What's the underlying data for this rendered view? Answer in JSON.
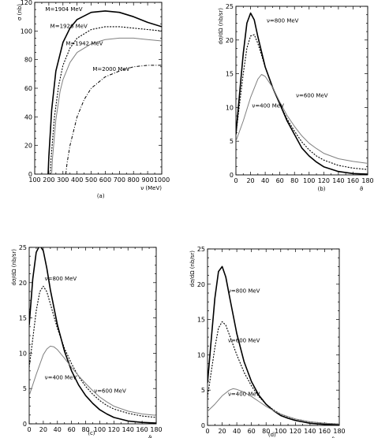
{
  "chart_data": [
    {
      "type": "line",
      "panel_label": "(a)",
      "xlabel": "ν (MeV)",
      "ylabel": "σ (nb)",
      "xlim": [
        100,
        1000
      ],
      "ylim": [
        0,
        120
      ],
      "xticks": [
        100,
        200,
        300,
        400,
        500,
        600,
        700,
        800,
        900,
        1000
      ],
      "yticks": [
        0,
        20,
        40,
        60,
        80,
        100,
        120
      ],
      "series": [
        {
          "name": "M=1904 MeV",
          "style": "solid-thick",
          "color": "#000000",
          "x": [
            195,
            200,
            220,
            250,
            300,
            350,
            400,
            500,
            600,
            700,
            800,
            900,
            1000
          ],
          "y": [
            0,
            12,
            45,
            72,
            92,
            102,
            108,
            113,
            114,
            113,
            110,
            106,
            103
          ]
        },
        {
          "name": "M=1926 MeV",
          "style": "dotted",
          "color": "#000000",
          "x": [
            210,
            215,
            240,
            270,
            300,
            350,
            400,
            500,
            600,
            700,
            800,
            900,
            1000
          ],
          "y": [
            0,
            10,
            40,
            62,
            76,
            88,
            95,
            101,
            103,
            103,
            102,
            101,
            100
          ]
        },
        {
          "name": "M=1942 MeV",
          "style": "solid-thin",
          "color": "#808080",
          "x": [
            220,
            225,
            250,
            280,
            300,
            350,
            400,
            500,
            600,
            700,
            800,
            900,
            1000
          ],
          "y": [
            0,
            10,
            38,
            58,
            66,
            78,
            85,
            91,
            94,
            95,
            95,
            94,
            93
          ]
        },
        {
          "name": "M=2000 MeV",
          "style": "dash-dot",
          "color": "#000000",
          "x": [
            320,
            330,
            350,
            400,
            450,
            500,
            600,
            700,
            800,
            900,
            1000
          ],
          "y": [
            0,
            8,
            20,
            40,
            52,
            60,
            68,
            72,
            75,
            76,
            76
          ]
        }
      ],
      "annotations": [
        "M=1904 MeV",
        "M=1926 MeV",
        "M=1942 MeV",
        "M=2000 MeV"
      ]
    },
    {
      "type": "line",
      "panel_label": "(b)",
      "xlabel": "ϑ",
      "ylabel": "dσ/dΩ (nb/sr)",
      "xlim": [
        0,
        180
      ],
      "ylim": [
        0,
        25
      ],
      "xticks": [
        0,
        20,
        40,
        60,
        80,
        100,
        120,
        140,
        160,
        180
      ],
      "yticks": [
        0,
        5,
        10,
        15,
        20,
        25
      ],
      "series": [
        {
          "name": "ν=800 MeV",
          "style": "solid-thick",
          "color": "#000000",
          "x": [
            0,
            5,
            10,
            15,
            20,
            25,
            30,
            40,
            50,
            60,
            70,
            80,
            90,
            100,
            110,
            120,
            140,
            160,
            180
          ],
          "y": [
            6,
            12,
            18,
            22.5,
            24,
            23,
            20.5,
            16,
            13,
            10.5,
            8,
            6,
            4,
            2.8,
            1.9,
            1.2,
            0.5,
            0.2,
            0.1
          ]
        },
        {
          "name": "ν=600 MeV",
          "style": "dotted",
          "color": "#000000",
          "x": [
            0,
            5,
            10,
            15,
            20,
            25,
            30,
            40,
            50,
            60,
            70,
            80,
            90,
            100,
            110,
            120,
            140,
            160,
            180
          ],
          "y": [
            6,
            10.5,
            15,
            18.8,
            20.6,
            20.8,
            19.5,
            16,
            13,
            10.5,
            8.3,
            6.5,
            4.9,
            3.7,
            2.8,
            2.2,
            1.4,
            1.0,
            0.8
          ]
        },
        {
          "name": "ν=400 MeV",
          "style": "solid-thin",
          "color": "#808080",
          "x": [
            0,
            10,
            20,
            30,
            35,
            40,
            50,
            60,
            70,
            80,
            90,
            100,
            110,
            120,
            140,
            160,
            180
          ],
          "y": [
            5,
            8,
            11.5,
            14.2,
            14.9,
            14.6,
            13,
            10.8,
            8.8,
            7.2,
            5.8,
            4.7,
            3.9,
            3.2,
            2.4,
            2.0,
            1.7
          ]
        }
      ],
      "annotations": [
        "ν=800 MeV",
        "ν=600 MeV",
        "ν=400 MeV"
      ]
    },
    {
      "type": "line",
      "panel_label": "(c)",
      "xlabel": "ϑ",
      "ylabel": "dσ/dΩ (nb/sr)",
      "xlim": [
        0,
        180
      ],
      "ylim": [
        0,
        25
      ],
      "xticks": [
        0,
        20,
        40,
        60,
        80,
        100,
        120,
        140,
        160,
        180
      ],
      "yticks": [
        0,
        5,
        10,
        15,
        20,
        25
      ],
      "series": [
        {
          "name": "ν=800 MeV",
          "style": "solid-thick",
          "color": "#000000",
          "x": [
            0,
            5,
            10,
            15,
            20,
            25,
            30,
            40,
            50,
            60,
            70,
            80,
            90,
            100,
            110,
            120,
            140,
            160,
            180
          ],
          "y": [
            14,
            20.5,
            24.3,
            25.3,
            24.5,
            22,
            19,
            14,
            10.3,
            7.5,
            5.5,
            4,
            2.9,
            2.0,
            1.4,
            0.9,
            0.4,
            0.2,
            0.1
          ]
        },
        {
          "name": "ν=600 MeV",
          "style": "dotted",
          "color": "#000000",
          "x": [
            0,
            5,
            10,
            15,
            20,
            25,
            30,
            40,
            50,
            60,
            70,
            80,
            90,
            100,
            110,
            120,
            140,
            160,
            180
          ],
          "y": [
            8,
            12,
            16,
            18.7,
            19.5,
            18.7,
            17,
            13.5,
            10.7,
            8.5,
            6.7,
            5.3,
            4.2,
            3.3,
            2.6,
            2.1,
            1.5,
            1.1,
            0.9
          ]
        },
        {
          "name": "ν=400 MeV",
          "style": "solid-thin",
          "color": "#808080",
          "x": [
            0,
            10,
            20,
            25,
            30,
            35,
            40,
            50,
            60,
            70,
            80,
            90,
            100,
            110,
            120,
            140,
            160,
            180
          ],
          "y": [
            4,
            7,
            9.8,
            10.6,
            11,
            10.9,
            10.5,
            9.3,
            8,
            6.8,
            5.7,
            4.7,
            3.8,
            3.1,
            2.5,
            1.8,
            1.4,
            1.2
          ]
        }
      ],
      "annotations": [
        "ν=800 MeV",
        "ν=600 MeV",
        "ν=400 MeV"
      ]
    },
    {
      "type": "line",
      "panel_label": "(d)",
      "xlabel": "ϑ",
      "ylabel": "dσ/dΩ (nb/sr)",
      "xlim": [
        0,
        180
      ],
      "ylim": [
        0,
        25
      ],
      "xticks": [
        0,
        20,
        40,
        60,
        80,
        100,
        120,
        140,
        160,
        180
      ],
      "yticks": [
        0,
        5,
        10,
        15,
        20,
        25
      ],
      "series": [
        {
          "name": "ν=800 MeV",
          "style": "solid-thick",
          "color": "#000000",
          "x": [
            0,
            5,
            10,
            15,
            20,
            25,
            30,
            40,
            50,
            60,
            70,
            80,
            90,
            100,
            110,
            120,
            140,
            160,
            180
          ],
          "y": [
            6,
            12,
            18,
            21.8,
            22.5,
            21,
            18.3,
            13,
            9,
            6.2,
            4.3,
            3,
            2.1,
            1.4,
            1.0,
            0.7,
            0.3,
            0.15,
            0.1
          ]
        },
        {
          "name": "ν=600 MeV",
          "style": "dotted",
          "color": "#000000",
          "x": [
            0,
            5,
            10,
            15,
            20,
            25,
            30,
            40,
            50,
            60,
            70,
            80,
            90,
            100,
            110,
            120,
            140,
            160,
            180
          ],
          "y": [
            4,
            7.5,
            11,
            13.8,
            14.7,
            14.2,
            12.8,
            10,
            7.5,
            5.6,
            4.1,
            3.0,
            2.2,
            1.6,
            1.2,
            0.9,
            0.5,
            0.3,
            0.2
          ]
        },
        {
          "name": "ν=400 MeV",
          "style": "solid-thin",
          "color": "#808080",
          "x": [
            0,
            10,
            20,
            30,
            35,
            40,
            50,
            60,
            70,
            80,
            90,
            100,
            120,
            140,
            160,
            180
          ],
          "y": [
            2,
            3,
            4.2,
            5,
            5.2,
            5.1,
            4.7,
            4.1,
            3.4,
            2.7,
            2.1,
            1.6,
            0.9,
            0.5,
            0.3,
            0.2
          ]
        }
      ],
      "annotations": [
        "ν=800 MeV",
        "ν=600 MeV",
        "ν=400 MeV"
      ]
    }
  ]
}
